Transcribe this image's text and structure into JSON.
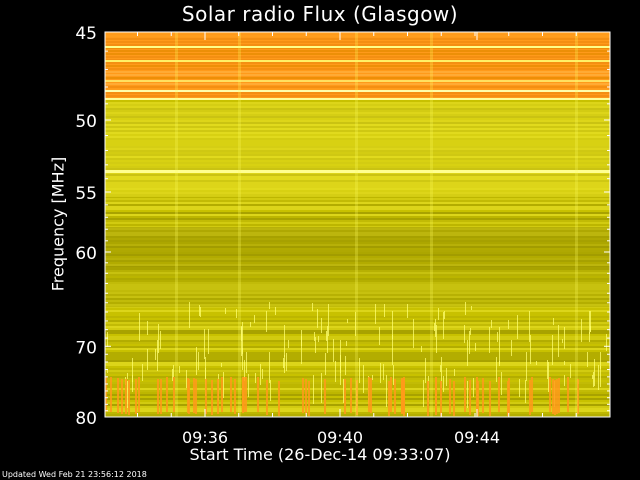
{
  "chart_data": {
    "type": "heatmap",
    "title": "Solar radio Flux (Glasgow)",
    "ylabel": "Frequency [MHz]",
    "xlabel": "Start Time (26-Dec-14 09:33:07)",
    "y_ticks": [
      45,
      50,
      55,
      60,
      70,
      80
    ],
    "ylim": [
      45,
      80
    ],
    "y_scale": "inverted-reciprocal",
    "x_ticks": [
      "09:36",
      "09:40",
      "09:44"
    ],
    "colors": {
      "background": "#000000",
      "low": "#b3ad00",
      "mid": "#e6df20",
      "high": "#ff9a1a",
      "peak": "#ffff88"
    }
  },
  "footer": {
    "updated": "Updated Wed Feb 21 23:56:12 2018"
  }
}
